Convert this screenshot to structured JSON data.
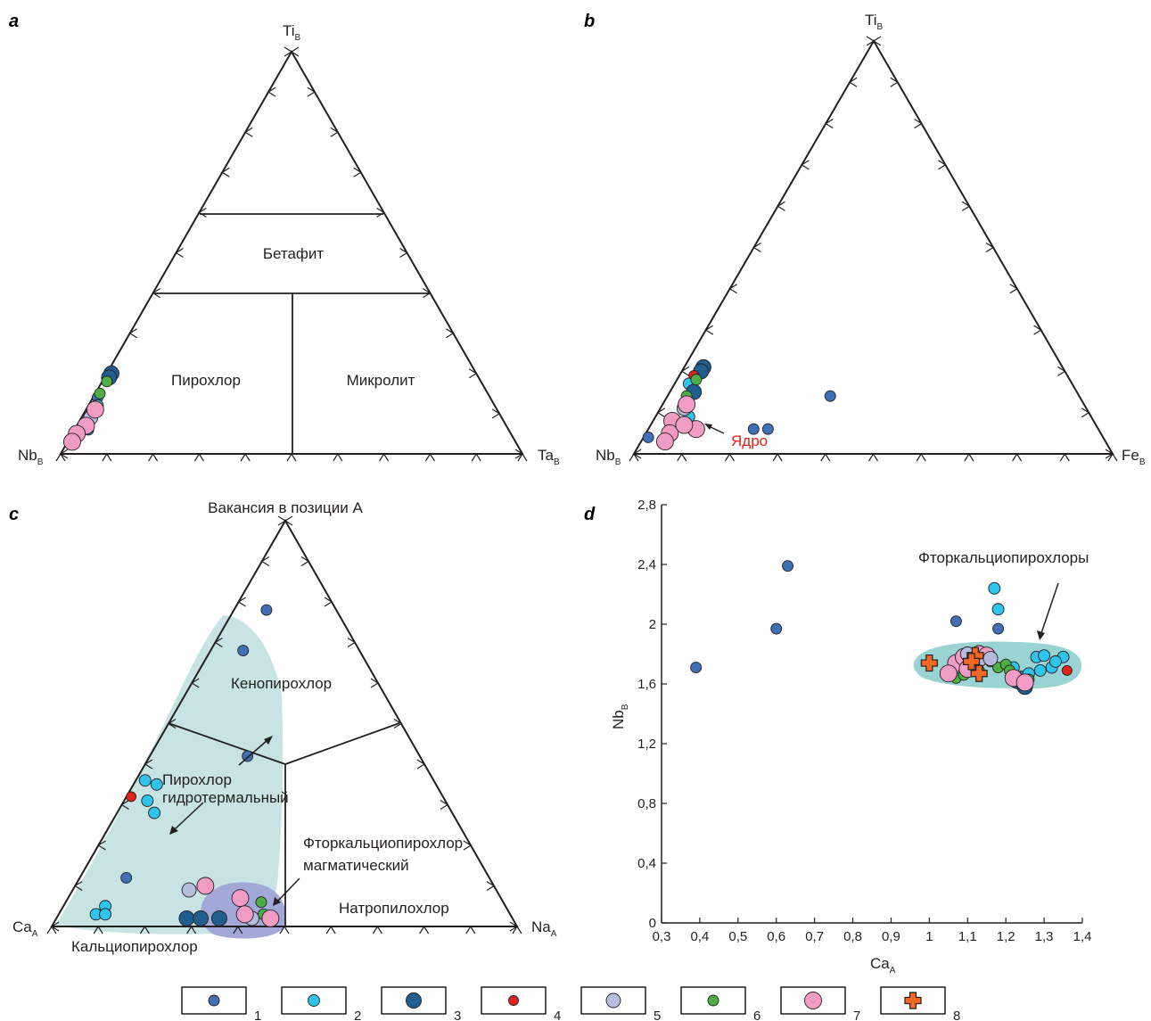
{
  "colors": {
    "type1": "#3f6fb5",
    "type2": "#2ec4ec",
    "type3": "#1f5e8f",
    "type4": "#e2231a",
    "type5": "#b7bbdd",
    "type6": "#4caf46",
    "type7": "#f19cc4",
    "type8": "#f26722",
    "field_hydro": "#c7e3e4",
    "field_magm": "#a2a8d8",
    "field_d": "#9ad3d3",
    "red_text": "#e2231a"
  },
  "panels": {
    "a": {
      "letter": "a",
      "apex": {
        "base": "Ti",
        "sub": "B"
      },
      "left": {
        "base": "Nb",
        "sub": "B"
      },
      "right": {
        "base": "Ta",
        "sub": "B"
      },
      "fields": [
        "Бетафит",
        "Пирохлор",
        "Микролит"
      ]
    },
    "b": {
      "letter": "b",
      "apex": {
        "base": "Ti",
        "sub": "B"
      },
      "left": {
        "base": "Nb",
        "sub": "B"
      },
      "right": {
        "base": "Fe",
        "sub": "B"
      },
      "annotation": "Ядро"
    },
    "c": {
      "letter": "c",
      "apex": "Вакансия в позиции А",
      "left": {
        "base": "Ca",
        "sub": "A"
      },
      "right": {
        "base": "Na",
        "sub": "A"
      },
      "fields": [
        "Кенопирохлор",
        "Пирохлор",
        "гидротермальный",
        "Фторкальциопирохлор",
        "магматический",
        "Натропилохлор",
        "Кальциопирохлор"
      ]
    },
    "d": {
      "letter": "d",
      "annotation": "Фторкальциопирохлоры"
    }
  },
  "legend": {
    "items": [
      {
        "label": "1",
        "icon": "type1-dot-icon"
      },
      {
        "label": "2",
        "icon": "type2-dot-icon"
      },
      {
        "label": "3",
        "icon": "type3-dot-icon"
      },
      {
        "label": "4",
        "icon": "type4-dot-icon"
      },
      {
        "label": "5",
        "icon": "type5-dot-icon"
      },
      {
        "label": "6",
        "icon": "type6-dot-icon"
      },
      {
        "label": "7",
        "icon": "type7-dot-icon"
      },
      {
        "label": "8",
        "icon": "type8-cross-icon"
      }
    ]
  },
  "chart_data": [
    {
      "panel": "a",
      "type": "scatter",
      "subtype": "ternary",
      "components": [
        "Ti",
        "Nb",
        "Ta"
      ],
      "series": [
        {
          "group": "1",
          "points": [
            [
              0.06,
              0.91,
              0.03
            ],
            [
              0.14,
              0.85,
              0.01
            ]
          ]
        },
        {
          "group": "2",
          "points": [
            [
              0.12,
              0.86,
              0.02
            ],
            [
              0.1,
              0.88,
              0.02
            ]
          ]
        },
        {
          "group": "3",
          "points": [
            [
              0.2,
              0.79,
              0.01
            ],
            [
              0.19,
              0.8,
              0.01
            ]
          ]
        },
        {
          "group": "5",
          "points": [
            [
              0.09,
              0.89,
              0.02
            ]
          ]
        },
        {
          "group": "6",
          "points": [
            [
              0.18,
              0.81,
              0.01
            ],
            [
              0.15,
              0.84,
              0.01
            ]
          ]
        },
        {
          "group": "7",
          "points": [
            [
              0.11,
              0.87,
              0.02
            ],
            [
              0.07,
              0.91,
              0.02
            ],
            [
              0.05,
              0.94,
              0.01
            ],
            [
              0.03,
              0.96,
              0.01
            ]
          ]
        }
      ]
    },
    {
      "panel": "b",
      "type": "scatter",
      "subtype": "ternary",
      "components": [
        "Ti",
        "Nb",
        "Fe"
      ],
      "series": [
        {
          "group": "1",
          "points": [
            [
              0.04,
              0.95,
              0.01
            ],
            [
              0.06,
              0.72,
              0.22
            ],
            [
              0.06,
              0.69,
              0.25
            ],
            [
              0.14,
              0.52,
              0.34
            ]
          ]
        },
        {
          "group": "2",
          "points": [
            [
              0.09,
              0.84,
              0.07
            ],
            [
              0.17,
              0.8,
              0.03
            ]
          ]
        },
        {
          "group": "3",
          "points": [
            [
              0.21,
              0.75,
              0.04
            ],
            [
              0.15,
              0.8,
              0.05
            ],
            [
              0.2,
              0.76,
              0.04
            ]
          ]
        },
        {
          "group": "4",
          "points": [
            [
              0.19,
              0.78,
              0.03
            ]
          ]
        },
        {
          "group": "5",
          "points": [
            [
              0.11,
              0.84,
              0.05
            ]
          ]
        },
        {
          "group": "6",
          "points": [
            [
              0.18,
              0.78,
              0.04
            ],
            [
              0.14,
              0.82,
              0.04
            ]
          ]
        },
        {
          "group": "7",
          "points": [
            [
              0.06,
              0.84,
              0.1
            ],
            [
              0.12,
              0.83,
              0.05
            ],
            [
              0.08,
              0.88,
              0.04
            ],
            [
              0.05,
              0.9,
              0.05
            ],
            [
              0.07,
              0.86,
              0.07
            ],
            [
              0.03,
              0.92,
              0.05
            ]
          ]
        }
      ]
    },
    {
      "panel": "c",
      "type": "scatter",
      "subtype": "ternary",
      "components": [
        "Vacancy_A",
        "Ca_A",
        "Na_A"
      ],
      "series": [
        {
          "group": "1",
          "points": [
            [
              0.78,
              0.15,
              0.07
            ],
            [
              0.68,
              0.25,
              0.07
            ],
            [
              0.12,
              0.78,
              0.1
            ],
            [
              0.42,
              0.37,
              0.21
            ]
          ]
        },
        {
          "group": "2",
          "points": [
            [
              0.36,
              0.62,
              0.02
            ],
            [
              0.35,
              0.6,
              0.05
            ],
            [
              0.31,
              0.64,
              0.05
            ],
            [
              0.28,
              0.64,
              0.08
            ],
            [
              0.03,
              0.89,
              0.08
            ],
            [
              0.05,
              0.86,
              0.09
            ],
            [
              0.03,
              0.87,
              0.1
            ]
          ]
        },
        {
          "group": "3",
          "points": [
            [
              0.02,
              0.7,
              0.28
            ],
            [
              0.02,
              0.67,
              0.31
            ],
            [
              0.02,
              0.63,
              0.35
            ]
          ]
        },
        {
          "group": "4",
          "points": [
            [
              0.32,
              0.67,
              0.01
            ]
          ]
        },
        {
          "group": "5",
          "points": [
            [
              0.09,
              0.66,
              0.25
            ],
            [
              0.02,
              0.56,
              0.42
            ]
          ]
        },
        {
          "group": "6",
          "points": [
            [
              0.06,
              0.52,
              0.42
            ],
            [
              0.03,
              0.53,
              0.44
            ]
          ]
        },
        {
          "group": "7",
          "points": [
            [
              0.1,
              0.62,
              0.28
            ],
            [
              0.07,
              0.56,
              0.37
            ],
            [
              0.03,
              0.57,
              0.4
            ],
            [
              0.02,
              0.52,
              0.46
            ]
          ]
        }
      ],
      "fields": {
        "hydrothermal_region": "light teal shaded envelope",
        "magmatic_region": "lavender shaded envelope"
      }
    },
    {
      "panel": "d",
      "type": "scatter",
      "xlabel": {
        "base": "Ca",
        "sub": "A"
      },
      "ylabel": {
        "base": "Nb",
        "sub": "B"
      },
      "xlim": [
        0.3,
        1.4
      ],
      "ylim": [
        0,
        2.8
      ],
      "xticks": [
        "0,3",
        "0,4",
        "0,5",
        "0,6",
        "0,7",
        "0,8",
        "0,9",
        "1",
        "1,1",
        "1,2",
        "1,3",
        "1,4"
      ],
      "yticks": [
        "0",
        "0,4",
        "0,8",
        "1,2",
        "1,6",
        "2",
        "2,4",
        "2,8"
      ],
      "series": [
        {
          "group": "1",
          "points": [
            [
              0.39,
              1.71
            ],
            [
              0.6,
              1.97
            ],
            [
              0.63,
              2.39
            ],
            [
              1.07,
              2.02
            ],
            [
              1.18,
              1.97
            ],
            [
              1.24,
              1.65
            ]
          ]
        },
        {
          "group": "2",
          "points": [
            [
              1.17,
              2.24
            ],
            [
              1.18,
              2.1
            ],
            [
              1.28,
              1.78
            ],
            [
              1.3,
              1.79
            ],
            [
              1.35,
              1.78
            ],
            [
              1.22,
              1.71
            ],
            [
              1.26,
              1.67
            ],
            [
              1.29,
              1.69
            ],
            [
              1.32,
              1.71
            ],
            [
              1.33,
              1.75
            ]
          ]
        },
        {
          "group": "3",
          "points": [
            [
              1.24,
              1.61
            ],
            [
              1.25,
              1.58
            ],
            [
              1.23,
              1.62
            ]
          ]
        },
        {
          "group": "4",
          "points": [
            [
              1.36,
              1.69
            ]
          ]
        },
        {
          "group": "5",
          "points": [
            [
              1.1,
              1.8
            ],
            [
              1.13,
              1.76
            ],
            [
              1.16,
              1.77
            ]
          ]
        },
        {
          "group": "6",
          "points": [
            [
              1.16,
              1.75
            ],
            [
              1.18,
              1.71
            ],
            [
              1.2,
              1.73
            ],
            [
              1.21,
              1.69
            ],
            [
              1.07,
              1.64
            ],
            [
              1.09,
              1.66
            ],
            [
              1.13,
              1.69
            ],
            [
              1.23,
              1.62
            ],
            [
              1.26,
              1.63
            ]
          ]
        },
        {
          "group": "7",
          "points": [
            [
              1.07,
              1.74
            ],
            [
              1.09,
              1.78
            ],
            [
              1.13,
              1.8
            ],
            [
              1.05,
              1.67
            ],
            [
              1.1,
              1.7
            ],
            [
              1.15,
              1.79
            ],
            [
              1.22,
              1.64
            ],
            [
              1.25,
              1.61
            ]
          ]
        },
        {
          "group": "8",
          "points": [
            [
              1.0,
              1.74
            ],
            [
              1.12,
              1.79
            ],
            [
              1.13,
              1.67
            ],
            [
              1.11,
              1.75
            ]
          ]
        }
      ]
    }
  ]
}
